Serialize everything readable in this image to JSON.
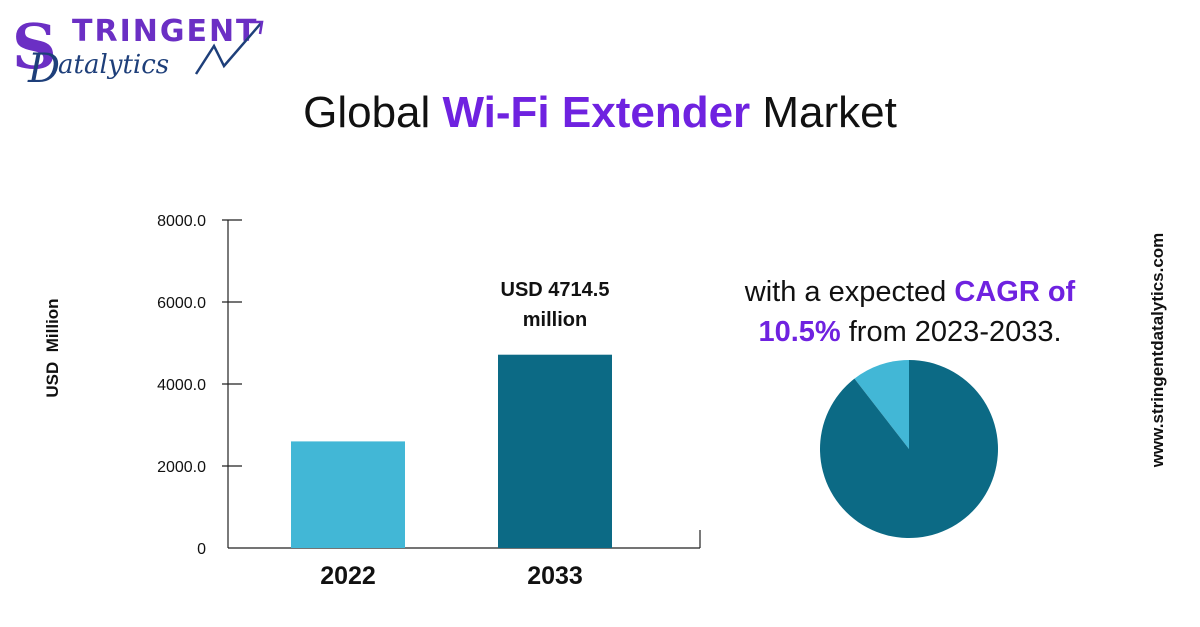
{
  "logo": {
    "top_text": "TRINGENT",
    "bottom_text": "atalytics",
    "colors": {
      "purple": "#6b2fc4",
      "navy": "#1e3f7a"
    }
  },
  "title": {
    "prefix": "Global ",
    "highlight": "Wi-Fi Extender",
    "suffix": " Market"
  },
  "cagr_text": {
    "before": "with a expected ",
    "highlight": "CAGR of 10.5%",
    "after": " from 2023-2033."
  },
  "side_url": "www.stringentdatalytics.com",
  "chart_data": [
    {
      "type": "bar",
      "categories": [
        "2022",
        "2033"
      ],
      "values": [
        2600,
        4714.5
      ],
      "ylabel": "USD  Million",
      "ylim": [
        0,
        8000
      ],
      "y_ticks": [
        "0",
        "2000.0",
        "4000.0",
        "6000.0",
        "8000.0"
      ],
      "y_tick_values": [
        0,
        2000,
        4000,
        6000,
        8000
      ],
      "annotations": [
        {
          "category": "2033",
          "lines": [
            "USD 4714.5",
            "million"
          ]
        }
      ],
      "grid": false,
      "colors": [
        "#42b7d6",
        "#0c6a85"
      ]
    },
    {
      "type": "pie",
      "values": [
        10.5,
        89.5
      ],
      "colors": [
        "#42b7d6",
        "#0c6a85"
      ]
    }
  ]
}
